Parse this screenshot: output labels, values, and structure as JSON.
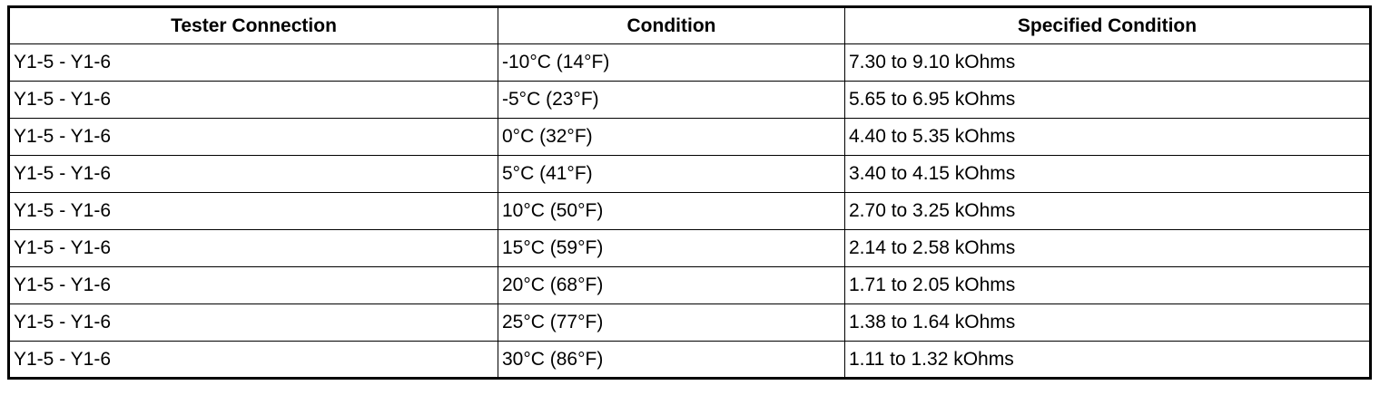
{
  "table": {
    "headers": [
      "Tester Connection",
      "Condition",
      "Specified Condition"
    ],
    "rows": [
      [
        "Y1-5 - Y1-6",
        "-10°C (14°F)",
        "7.30 to 9.10 kOhms"
      ],
      [
        "Y1-5 - Y1-6",
        "-5°C (23°F)",
        "5.65 to 6.95 kOhms"
      ],
      [
        "Y1-5 - Y1-6",
        "0°C (32°F)",
        "4.40 to 5.35 kOhms"
      ],
      [
        "Y1-5 - Y1-6",
        "5°C (41°F)",
        "3.40 to 4.15 kOhms"
      ],
      [
        "Y1-5 - Y1-6",
        "10°C (50°F)",
        "2.70 to 3.25 kOhms"
      ],
      [
        "Y1-5 - Y1-6",
        "15°C (59°F)",
        "2.14 to 2.58 kOhms"
      ],
      [
        "Y1-5 - Y1-6",
        "20°C (68°F)",
        "1.71 to 2.05 kOhms"
      ],
      [
        "Y1-5 - Y1-6",
        "25°C (77°F)",
        "1.38 to 1.64 kOhms"
      ],
      [
        "Y1-5 - Y1-6",
        "30°C (86°F)",
        "1.11 to 1.32 kOhms"
      ]
    ]
  }
}
